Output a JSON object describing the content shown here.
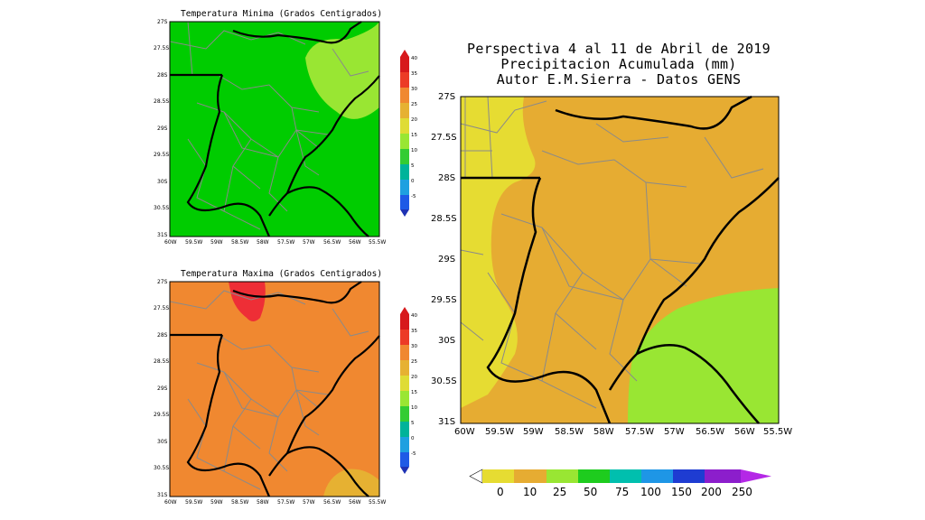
{
  "top_map": {
    "title": "Temperatura Minima (Grados Centigrados)",
    "lat_ticks": [
      "27S",
      "27.5S",
      "28S",
      "28.5S",
      "29S",
      "29.5S",
      "30S",
      "30.5S",
      "31S"
    ],
    "lon_ticks": [
      "60W",
      "59.5W",
      "59W",
      "58.5W",
      "58W",
      "57.5W",
      "57W",
      "56.5W",
      "56W",
      "55.5W"
    ],
    "fill_colors": {
      "base": "#00cc00",
      "upper": "#99e633"
    }
  },
  "bottom_map": {
    "title": "Temperatura Maxima (Grados Centigrados)",
    "lat_ticks": [
      "27S",
      "27.5S",
      "28S",
      "28.5S",
      "29S",
      "29.5S",
      "30S",
      "30.5S",
      "31S"
    ],
    "lon_ticks": [
      "60W",
      "59.5W",
      "59W",
      "58.5W",
      "58W",
      "57.5W",
      "57W",
      "56.5W",
      "56W",
      "55.5W"
    ],
    "fill_colors": {
      "base": "#f08830",
      "hot": "#ee2e36",
      "cool": "#e6b132"
    }
  },
  "temp_colorbar": {
    "labels": [
      "40",
      "35",
      "30",
      "25",
      "20",
      "15",
      "10",
      "5",
      "0",
      "-5"
    ],
    "colors": [
      "#d7191c",
      "#ec3b26",
      "#f08830",
      "#e6b132",
      "#dfdc35",
      "#99e633",
      "#33cc33",
      "#00b39a",
      "#1ea0e0",
      "#1e5ae6",
      "#1e32b4"
    ]
  },
  "main_map": {
    "title_lines": [
      "Perspectiva 4 al 11 de Abril de 2019",
      "Precipitacion Acumulada (mm)",
      "Autor E.M.Sierra - Datos GENS"
    ],
    "lat_ticks": [
      "27S",
      "27.5S",
      "28S",
      "28.5S",
      "29S",
      "29.5S",
      "30S",
      "30.5S",
      "31S"
    ],
    "lon_ticks": [
      "60W",
      "59.5W",
      "59W",
      "58.5W",
      "58W",
      "57.5W",
      "57W",
      "56.5W",
      "56W",
      "55.5W"
    ],
    "fill_colors": {
      "band_0_10": "#e6dc32",
      "band_10_25": "#e6ac32",
      "band_25_50": "#99e633"
    }
  },
  "precip_colorbar": {
    "labels": [
      "0",
      "10",
      "25",
      "50",
      "75",
      "100",
      "150",
      "200",
      "250"
    ],
    "colors": [
      "#ffffff",
      "#e6dc32",
      "#e6ac32",
      "#99e633",
      "#1ecc1e",
      "#00bfae",
      "#1e96e6",
      "#1e3cd2",
      "#8c1ecc",
      "#b428e6"
    ]
  }
}
